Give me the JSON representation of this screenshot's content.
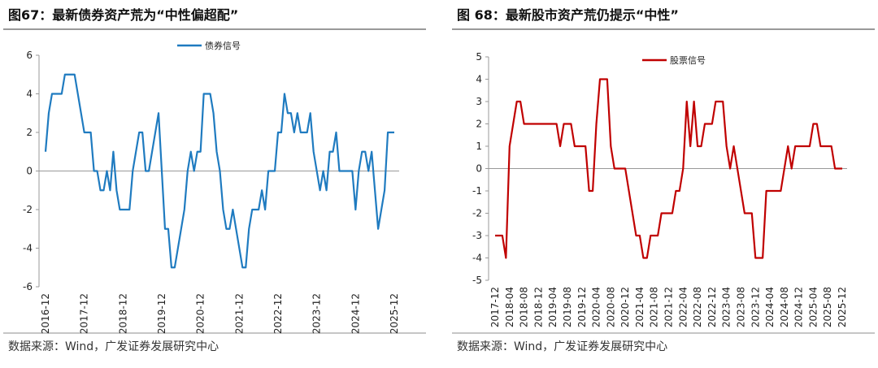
{
  "chart_data": [
    {
      "type": "line",
      "title": "图67：最新债券资产荒为“中性偏超配”",
      "source": "数据来源：Wind，广发证券发展研究中心",
      "categories": [
        "2016-12",
        null,
        null,
        null,
        null,
        null,
        null,
        null,
        null,
        null,
        null,
        null,
        "2017-12",
        null,
        null,
        null,
        null,
        null,
        null,
        null,
        null,
        null,
        null,
        null,
        "2018-12",
        null,
        null,
        null,
        null,
        null,
        null,
        null,
        null,
        null,
        null,
        null,
        "2019-12",
        null,
        null,
        null,
        null,
        null,
        null,
        null,
        null,
        null,
        null,
        null,
        "2020-12",
        null,
        null,
        null,
        null,
        null,
        null,
        null,
        null,
        null,
        null,
        null,
        "2021-12",
        null,
        null,
        null,
        null,
        null,
        null,
        null,
        null,
        null,
        null,
        null,
        "2022-12",
        null,
        null,
        null,
        null,
        null,
        null,
        null,
        null,
        null,
        null,
        null,
        "2023-12",
        null,
        null,
        null,
        null,
        null,
        null,
        null,
        null,
        null,
        null,
        null,
        "2024-12",
        null,
        null,
        null,
        null,
        null,
        null,
        null,
        null,
        null,
        null,
        null,
        "2025-12"
      ],
      "series": [
        {
          "name": "债券信号",
          "color": "#1f7bc0",
          "values": [
            1,
            3,
            4,
            4,
            4,
            4,
            5,
            5,
            5,
            5,
            4,
            3,
            2,
            2,
            2,
            0,
            0,
            -1,
            -1,
            0,
            -1,
            1,
            -1,
            -2,
            -2,
            -2,
            -2,
            0,
            1,
            2,
            2,
            0,
            0,
            1,
            2,
            3,
            0,
            -3,
            -3,
            -5,
            -5,
            -4,
            -3,
            -2,
            0,
            1,
            0,
            1,
            1,
            4,
            4,
            4,
            3,
            1,
            0,
            -2,
            -3,
            -3,
            -2,
            -3,
            -4,
            -5,
            -5,
            -3,
            -2,
            -2,
            -2,
            -1,
            -2,
            0,
            0,
            0,
            2,
            2,
            4,
            3,
            3,
            2,
            3,
            2,
            2,
            2,
            3,
            1,
            0,
            -1,
            0,
            -1,
            1,
            1,
            2,
            0,
            0,
            0,
            0,
            0,
            -2,
            0,
            1,
            1,
            0,
            1,
            -1,
            -3,
            -2,
            -1,
            2,
            2,
            2
          ]
        }
      ],
      "ylim": [
        -6,
        6
      ],
      "yticks": [
        -6,
        -4,
        -2,
        0,
        2,
        4,
        6
      ]
    },
    {
      "type": "line",
      "title": "图 68：最新股市资产荒仍提示“中性”",
      "source": "数据来源：Wind，广发证券发展研究中心",
      "categories": [
        "2017-12",
        null,
        null,
        null,
        "2018-04",
        null,
        null,
        null,
        "2018-08",
        null,
        null,
        null,
        "2018-12",
        null,
        null,
        null,
        "2019-04",
        null,
        null,
        null,
        "2019-08",
        null,
        null,
        null,
        "2019-12",
        null,
        null,
        null,
        "2020-04",
        null,
        null,
        null,
        "2020-08",
        null,
        null,
        null,
        "2020-12",
        null,
        null,
        null,
        "2021-04",
        null,
        null,
        null,
        "2021-08",
        null,
        null,
        null,
        "2021-12",
        null,
        null,
        null,
        "2022-04",
        null,
        null,
        null,
        "2022-08",
        null,
        null,
        null,
        "2022-12",
        null,
        null,
        null,
        "2023-04",
        null,
        null,
        null,
        "2023-08",
        null,
        null,
        null,
        "2023-12",
        null,
        null,
        null,
        "2024-04",
        null,
        null,
        null,
        "2024-08",
        null,
        null,
        null,
        "2024-12",
        null,
        null,
        null,
        "2025-04",
        null,
        null,
        null,
        "2025-08",
        null,
        null,
        null,
        "2025-12"
      ],
      "series": [
        {
          "name": "股票信号",
          "color": "#c00000",
          "values": [
            -3,
            -3,
            -3,
            -4,
            1,
            2,
            3,
            3,
            2,
            2,
            2,
            2,
            2,
            2,
            2,
            2,
            2,
            2,
            1,
            2,
            2,
            2,
            1,
            1,
            1,
            1,
            -1,
            -1,
            2,
            4,
            4,
            4,
            1,
            0,
            0,
            0,
            0,
            -1,
            -2,
            -3,
            -3,
            -4,
            -4,
            -3,
            -3,
            -3,
            -2,
            -2,
            -2,
            -2,
            -1,
            -1,
            0,
            3,
            1,
            3,
            1,
            1,
            2,
            2,
            2,
            3,
            3,
            3,
            1,
            0,
            1,
            0,
            -1,
            -2,
            -2,
            -2,
            -4,
            -4,
            -4,
            -1,
            -1,
            -1,
            -1,
            -1,
            0,
            1,
            0,
            1,
            1,
            1,
            1,
            1,
            2,
            2,
            1,
            1,
            1,
            1,
            0,
            0,
            0
          ]
        }
      ],
      "ylim": [
        -5,
        5
      ],
      "yticks": [
        -5,
        -4,
        -3,
        -2,
        -1,
        0,
        1,
        2,
        3,
        4,
        5
      ]
    }
  ]
}
